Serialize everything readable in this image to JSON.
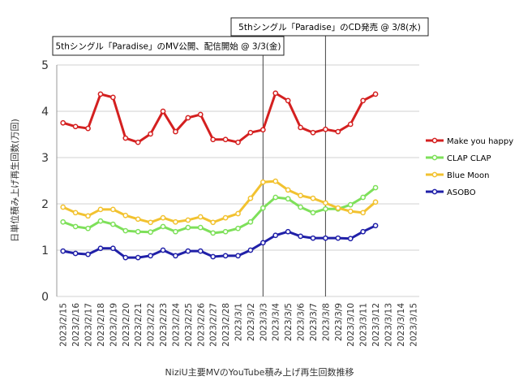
{
  "chart_data": {
    "type": "line",
    "ylabel": "日単位積み上げ再生回数(万回)",
    "xlabel": "NiziU主要MVのYouTube積み上げ再生回数推移",
    "categories": [
      "2023/2/15",
      "2023/2/16",
      "2023/2/17",
      "2023/2/18",
      "2023/2/19",
      "2023/2/20",
      "2023/2/21",
      "2023/2/22",
      "2023/2/23",
      "2023/2/24",
      "2023/2/25",
      "2023/2/26",
      "2023/2/27",
      "2023/2/28",
      "2023/3/1",
      "2023/3/2",
      "2023/3/3",
      "2023/3/4",
      "2023/3/5",
      "2023/3/6",
      "2023/3/7",
      "2023/3/8",
      "2023/3/9",
      "2023/3/10",
      "2023/3/11",
      "2023/3/12",
      "2023/3/13",
      "2023/3/14",
      "2023/3/15"
    ],
    "series": [
      {
        "name": "Make you happy",
        "color": "#d42020",
        "values": [
          3.75,
          3.67,
          3.63,
          4.37,
          4.3,
          3.42,
          3.33,
          3.51,
          4.0,
          3.56,
          3.86,
          3.93,
          3.39,
          3.39,
          3.33,
          3.54,
          3.6,
          4.39,
          4.23,
          3.65,
          3.54,
          3.61,
          3.56,
          3.72,
          4.23,
          4.37,
          null,
          null,
          null
        ]
      },
      {
        "name": "CLAP CLAP",
        "color": "#7ee05a",
        "values": [
          1.61,
          1.51,
          1.47,
          1.63,
          1.56,
          1.42,
          1.4,
          1.39,
          1.51,
          1.4,
          1.49,
          1.49,
          1.37,
          1.4,
          1.47,
          1.61,
          1.91,
          2.14,
          2.11,
          1.93,
          1.81,
          1.89,
          1.89,
          1.98,
          2.14,
          2.35,
          null,
          null,
          null
        ]
      },
      {
        "name": "Blue Moon",
        "color": "#f2c230",
        "values": [
          1.93,
          1.81,
          1.74,
          1.88,
          1.88,
          1.75,
          1.67,
          1.6,
          1.7,
          1.61,
          1.65,
          1.72,
          1.6,
          1.7,
          1.79,
          2.12,
          2.47,
          2.49,
          2.3,
          2.18,
          2.12,
          2.02,
          1.91,
          1.84,
          1.81,
          2.04,
          null,
          null,
          null
        ]
      },
      {
        "name": "ASOBO",
        "color": "#2020a8",
        "values": [
          0.98,
          0.93,
          0.91,
          1.04,
          1.04,
          0.84,
          0.84,
          0.88,
          1.0,
          0.88,
          0.98,
          0.98,
          0.86,
          0.88,
          0.88,
          1.0,
          1.16,
          1.32,
          1.4,
          1.3,
          1.26,
          1.26,
          1.26,
          1.25,
          1.4,
          1.53,
          null,
          null,
          null
        ]
      }
    ],
    "annotations": [
      {
        "text": "5thシングル「Paradise」のMV公開、配信開始 @ 3/3(金)",
        "x": "2023/3/3"
      },
      {
        "text": "5thシングル「Paradise」のCD発売 @ 3/8(水)",
        "x": "2023/3/8"
      }
    ],
    "ylim": [
      0,
      5
    ],
    "yticks": [
      0,
      1,
      2,
      3,
      4,
      5
    ],
    "grid": true,
    "legend": "right"
  }
}
